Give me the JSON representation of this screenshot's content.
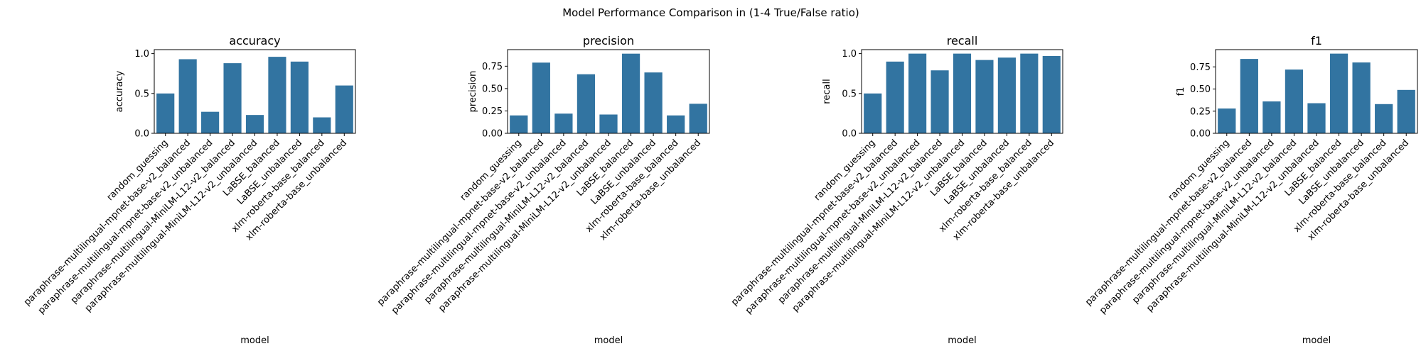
{
  "figure": {
    "suptitle": "Model Performance Comparison in (1-4 True/False ratio)",
    "bar_color": "#3274a1"
  },
  "chart_data": [
    {
      "type": "bar",
      "title": "accuracy",
      "xlabel": "model",
      "ylabel": "accuracy",
      "categories": [
        "random_guessing",
        "paraphrase-multilingual-mpnet-base-v2_balanced",
        "paraphrase-multilingual-mpnet-base-v2_unbalanced",
        "paraphrase-multilingual-MiniLM-L12-v2_balanced",
        "paraphrase-multilingual-MiniLM-L12-v2_unbalanced",
        "LaBSE_balanced",
        "LaBSE_unbalanced",
        "xlm-roberta-base_balanced",
        "xlm-roberta-base_unbalanced"
      ],
      "values": [
        0.5,
        0.93,
        0.27,
        0.88,
        0.23,
        0.96,
        0.9,
        0.2,
        0.6
      ],
      "ylim": [
        0,
        1.05
      ],
      "yticks": [
        0.0,
        0.5,
        1.0
      ],
      "ytick_labels": [
        "0.0",
        "0.5",
        "1.0"
      ],
      "grid": false
    },
    {
      "type": "bar",
      "title": "precision",
      "xlabel": "model",
      "ylabel": "precision",
      "categories": [
        "random_guessing",
        "paraphrase-multilingual-mpnet-base-v2_balanced",
        "paraphrase-multilingual-mpnet-base-v2_unbalanced",
        "paraphrase-multilingual-MiniLM-L12-v2_balanced",
        "paraphrase-multilingual-MiniLM-L12-v2_unbalanced",
        "LaBSE_balanced",
        "LaBSE_unbalanced",
        "xlm-roberta-base_balanced",
        "xlm-roberta-base_unbalanced"
      ],
      "values": [
        0.2,
        0.79,
        0.22,
        0.66,
        0.21,
        0.89,
        0.68,
        0.2,
        0.33
      ],
      "ylim": [
        0,
        0.935
      ],
      "yticks": [
        0.0,
        0.25,
        0.5,
        0.75
      ],
      "ytick_labels": [
        "0.00",
        "0.25",
        "0.50",
        "0.75"
      ],
      "grid": false
    },
    {
      "type": "bar",
      "title": "recall",
      "xlabel": "model",
      "ylabel": "recall",
      "categories": [
        "random_guessing",
        "paraphrase-multilingual-mpnet-base-v2_balanced",
        "paraphrase-multilingual-mpnet-base-v2_unbalanced",
        "paraphrase-multilingual-MiniLM-L12-v2_balanced",
        "paraphrase-multilingual-MiniLM-L12-v2_unbalanced",
        "LaBSE_balanced",
        "LaBSE_unbalanced",
        "xlm-roberta-base_balanced",
        "xlm-roberta-base_unbalanced"
      ],
      "values": [
        0.5,
        0.9,
        1.0,
        0.79,
        1.0,
        0.92,
        0.95,
        1.0,
        0.97
      ],
      "ylim": [
        0,
        1.05
      ],
      "yticks": [
        0.0,
        0.5,
        1.0
      ],
      "ytick_labels": [
        "0.0",
        "0.5",
        "1.0"
      ],
      "grid": false
    },
    {
      "type": "bar",
      "title": "f1",
      "xlabel": "model",
      "ylabel": "f1",
      "categories": [
        "random_guessing",
        "paraphrase-multilingual-mpnet-base-v2_balanced",
        "paraphrase-multilingual-mpnet-base-v2_unbalanced",
        "paraphrase-multilingual-MiniLM-L12-v2_balanced",
        "paraphrase-multilingual-MiniLM-L12-v2_unbalanced",
        "LaBSE_balanced",
        "LaBSE_unbalanced",
        "xlm-roberta-base_balanced",
        "xlm-roberta-base_unbalanced"
      ],
      "values": [
        0.28,
        0.84,
        0.36,
        0.72,
        0.34,
        0.9,
        0.8,
        0.33,
        0.49
      ],
      "ylim": [
        0,
        0.945
      ],
      "yticks": [
        0.0,
        0.25,
        0.5,
        0.75
      ],
      "ytick_labels": [
        "0.00",
        "0.25",
        "0.50",
        "0.75"
      ],
      "grid": false
    }
  ]
}
